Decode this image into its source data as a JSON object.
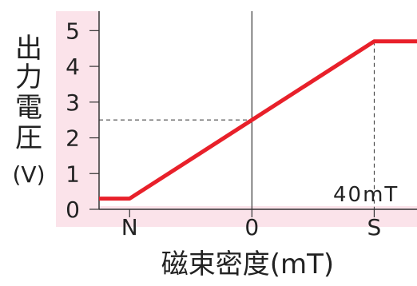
{
  "chart_data": {
    "type": "line",
    "title": "",
    "xlabel": "磁束密度(mT)",
    "ylabel": "出力電圧(V)",
    "ylabel_chars": [
      "出",
      "力",
      "電",
      "圧",
      "(V)"
    ],
    "x_tick_labels": [
      "N",
      "0",
      "S"
    ],
    "x_ticks": [
      -40,
      0,
      40
    ],
    "xlim": [
      -50,
      54
    ],
    "y_ticks": [
      0,
      1,
      2,
      3,
      4,
      5
    ],
    "y_tick_labels": [
      "0",
      "1",
      "2",
      "3",
      "4",
      "5"
    ],
    "ylim": [
      0,
      5.5
    ],
    "grid": false,
    "series": [
      {
        "color": "#e8202a",
        "x": [
          -50,
          -40,
          40,
          54
        ],
        "y": [
          0.3,
          0.3,
          4.7,
          4.7
        ]
      }
    ],
    "reference_lines": {
      "y_at_zero": 2.5,
      "x_at_saturation": 40
    },
    "annotation": "40mT",
    "colors": {
      "background_band": "#fbe3ea",
      "plot_bg": "#ffffff",
      "axis": "#333333",
      "line": "#e8202a"
    }
  }
}
